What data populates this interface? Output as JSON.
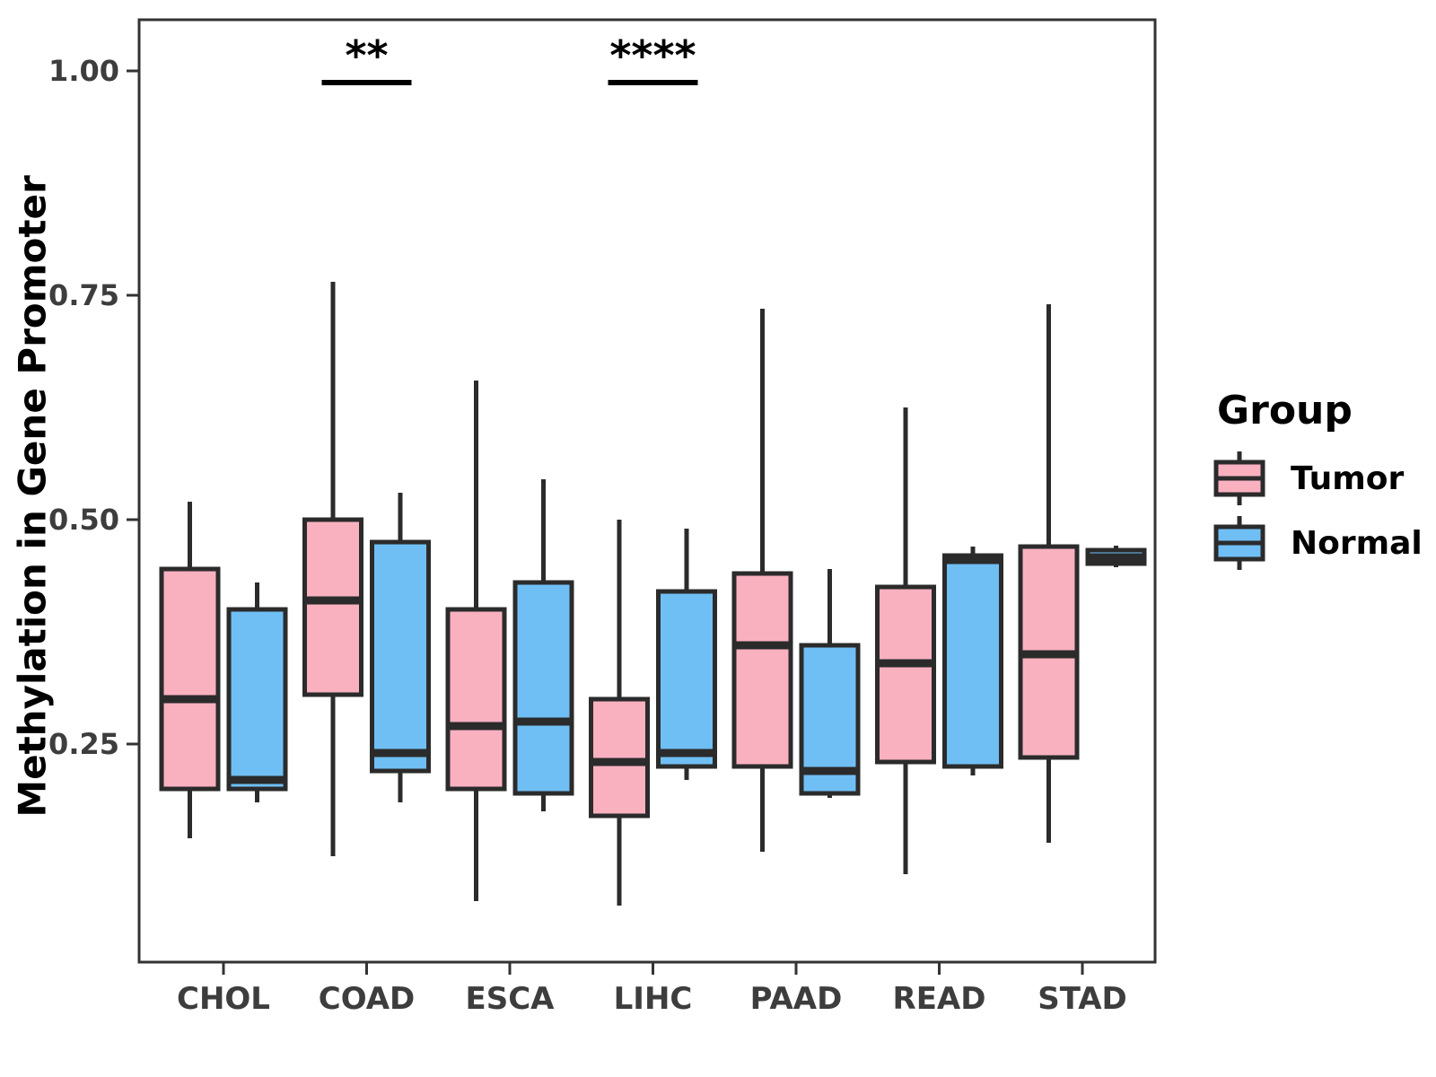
{
  "chart_data": {
    "type": "grouped_boxplot",
    "title": "",
    "xlabel": "",
    "ylabel": "Methylation in Gene Promoter",
    "categories": [
      "CHOL",
      "COAD",
      "ESCA",
      "LIHC",
      "PAAD",
      "READ",
      "STAD"
    ],
    "y_ticks": [
      0.25,
      0.5,
      0.75,
      1.0
    ],
    "y_tick_labels": [
      "0.25",
      "0.50",
      "0.75",
      "1.00"
    ],
    "ylim": [
      0.007,
      1.057
    ],
    "grid": "off",
    "legend_position": "right",
    "series": [
      {
        "name": "Tumor",
        "color": "#F9B1C0",
        "boxes": [
          {
            "category": "CHOL",
            "min": 0.145,
            "q1": 0.2,
            "median": 0.3,
            "q3": 0.445,
            "max": 0.52
          },
          {
            "category": "COAD",
            "min": 0.125,
            "q1": 0.305,
            "median": 0.41,
            "q3": 0.5,
            "max": 0.765
          },
          {
            "category": "ESCA",
            "min": 0.075,
            "q1": 0.2,
            "median": 0.27,
            "q3": 0.4,
            "max": 0.655
          },
          {
            "category": "LIHC",
            "min": 0.07,
            "q1": 0.17,
            "median": 0.23,
            "q3": 0.3,
            "max": 0.5
          },
          {
            "category": "PAAD",
            "min": 0.13,
            "q1": 0.225,
            "median": 0.36,
            "q3": 0.44,
            "max": 0.735
          },
          {
            "category": "READ",
            "min": 0.105,
            "q1": 0.23,
            "median": 0.34,
            "q3": 0.425,
            "max": 0.625
          },
          {
            "category": "STAD",
            "min": 0.14,
            "q1": 0.235,
            "median": 0.35,
            "q3": 0.47,
            "max": 0.74
          }
        ]
      },
      {
        "name": "Normal",
        "color": "#70BFF4",
        "boxes": [
          {
            "category": "CHOL",
            "min": 0.185,
            "q1": 0.2,
            "median": 0.21,
            "q3": 0.4,
            "max": 0.43
          },
          {
            "category": "COAD",
            "min": 0.185,
            "q1": 0.22,
            "median": 0.24,
            "q3": 0.475,
            "max": 0.53
          },
          {
            "category": "ESCA",
            "min": 0.175,
            "q1": 0.195,
            "median": 0.275,
            "q3": 0.43,
            "max": 0.545
          },
          {
            "category": "LIHC",
            "min": 0.21,
            "q1": 0.225,
            "median": 0.24,
            "q3": 0.42,
            "max": 0.49
          },
          {
            "category": "PAAD",
            "min": 0.19,
            "q1": 0.195,
            "median": 0.22,
            "q3": 0.36,
            "max": 0.445
          },
          {
            "category": "READ",
            "min": 0.215,
            "q1": 0.225,
            "median": 0.455,
            "q3": 0.46,
            "max": 0.47
          },
          {
            "category": "STAD",
            "min": 0.447,
            "q1": 0.451,
            "median": 0.458,
            "q3": 0.466,
            "max": 0.471
          }
        ]
      }
    ],
    "annotations": [
      {
        "category": "COAD",
        "label": "**",
        "bar_value": 0.987,
        "label_value": 1.015
      },
      {
        "category": "LIHC",
        "label": "****",
        "bar_value": 0.987,
        "label_value": 1.015
      }
    ]
  },
  "legend": {
    "title": "Group",
    "items": [
      {
        "label": "Tumor",
        "color": "#F9B1C0"
      },
      {
        "label": "Normal",
        "color": "#70BFF4"
      }
    ]
  },
  "style": {
    "line_color": "#2B2B2B",
    "axis_text_color": "#3D3D3D",
    "panel_border_color": "#333333"
  }
}
